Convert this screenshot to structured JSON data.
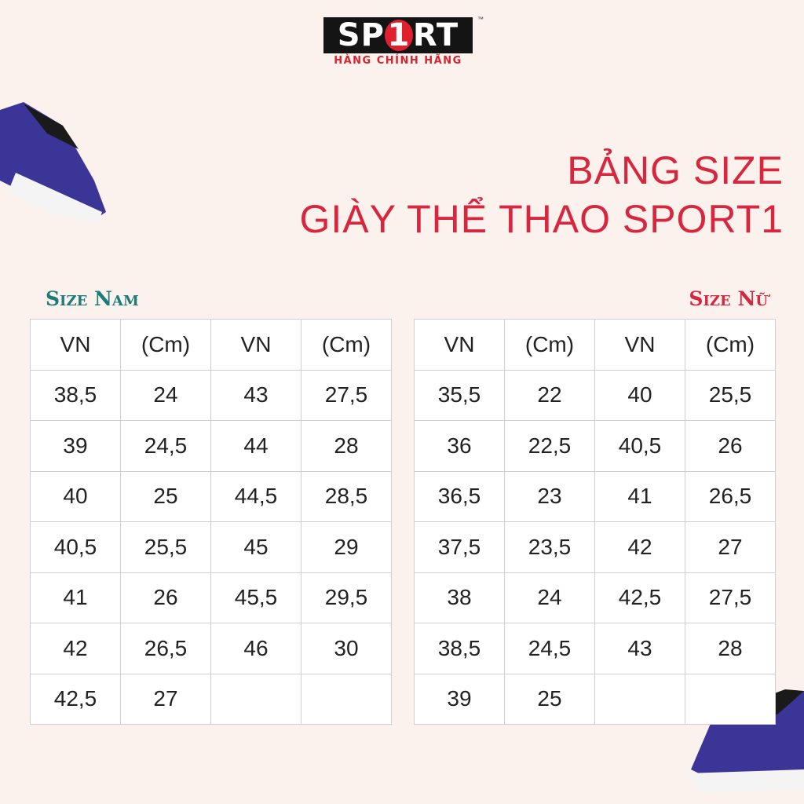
{
  "logo": {
    "brand_pre": "SP",
    "brand_one": "1",
    "brand_post": "RT",
    "tagline": "HÀNG CHÍNH HÃNG",
    "tm": "™"
  },
  "title": {
    "line1": "BẢNG SIZE",
    "line2": "GIÀY THỂ THAO SPORT1"
  },
  "colors": {
    "title": "#d7263d",
    "men": "#1d7b79",
    "women": "#d7263d",
    "background": "#fbf2ee"
  },
  "men": {
    "label": "Size Nam",
    "headers": [
      "VN",
      "(Cm)",
      "VN",
      "(Cm)"
    ],
    "rows": [
      [
        "38,5",
        "24",
        "43",
        "27,5"
      ],
      [
        "39",
        "24,5",
        "44",
        "28"
      ],
      [
        "40",
        "25",
        "44,5",
        "28,5"
      ],
      [
        "40,5",
        "25,5",
        "45",
        "29"
      ],
      [
        "41",
        "26",
        "45,5",
        "29,5"
      ],
      [
        "42",
        "26,5",
        "46",
        "30"
      ],
      [
        "42,5",
        "27",
        "",
        ""
      ]
    ]
  },
  "women": {
    "label": "Size Nữ",
    "headers": [
      "VN",
      "(Cm)",
      "VN",
      "(Cm)"
    ],
    "rows": [
      [
        "35,5",
        "22",
        "40",
        "25,5"
      ],
      [
        "36",
        "22,5",
        "40,5",
        "26"
      ],
      [
        "36,5",
        "23",
        "41",
        "26,5"
      ],
      [
        "37,5",
        "23,5",
        "42",
        "27"
      ],
      [
        "38",
        "24",
        "42,5",
        "27,5"
      ],
      [
        "38,5",
        "24,5",
        "43",
        "28"
      ],
      [
        "39",
        "25",
        "",
        ""
      ]
    ]
  }
}
